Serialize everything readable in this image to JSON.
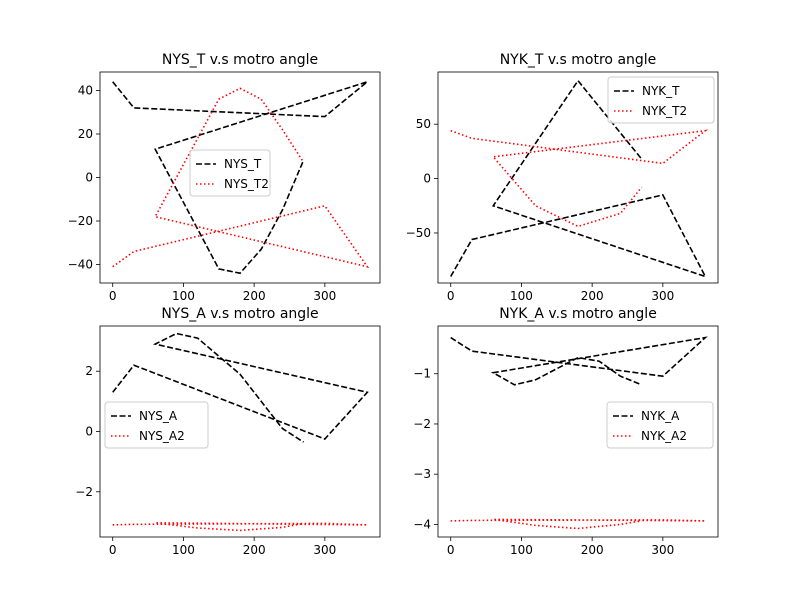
{
  "figure": {
    "background": "#ffffff"
  },
  "chart_data": [
    {
      "type": "line",
      "title": "NYS_T v.s motro angle",
      "xlabel": "",
      "ylabel": "",
      "xlim": [
        -18,
        378
      ],
      "ylim": [
        -48.5,
        48.5
      ],
      "xticks": [
        0,
        100,
        200,
        300
      ],
      "yticks": [
        -40,
        -20,
        0,
        20,
        40
      ],
      "grid": false,
      "legend": {
        "placement": "center",
        "entries": [
          "NYS_T",
          "NYS_T2"
        ]
      },
      "series": [
        {
          "name": "NYS_T",
          "color": "#000000",
          "dash": "dashed",
          "x": [
            0,
            30,
            300,
            360,
            60,
            150,
            180,
            210,
            240,
            270
          ],
          "y": [
            44,
            32,
            28,
            44,
            13,
            -42,
            -44,
            -33,
            -15,
            8
          ]
        },
        {
          "name": "NYS_T2",
          "color": "#ff0000",
          "dash": "dotted",
          "x": [
            0,
            30,
            300,
            360,
            60,
            150,
            180,
            210,
            240,
            270
          ],
          "y": [
            -41,
            -34,
            -13,
            -41,
            -18,
            36,
            41,
            36,
            22,
            7
          ]
        }
      ]
    },
    {
      "type": "line",
      "title": "NYK_T v.s motro angle",
      "xlabel": "",
      "ylabel": "",
      "xlim": [
        -18,
        378
      ],
      "ylim": [
        -96,
        98
      ],
      "xticks": [
        0,
        100,
        200,
        300
      ],
      "yticks": [
        -50,
        0,
        50
      ],
      "grid": false,
      "legend": {
        "placement": "top-right",
        "entries": [
          "NYK_T",
          "NYK_T2"
        ]
      },
      "series": [
        {
          "name": "NYK_T",
          "color": "#000000",
          "dash": "dashed",
          "x": [
            0,
            30,
            300,
            360,
            60,
            180,
            270
          ],
          "y": [
            -90,
            -56,
            -15,
            -90,
            -25,
            90,
            18
          ]
        },
        {
          "name": "NYK_T2",
          "color": "#ff0000",
          "dash": "dotted",
          "x": [
            0,
            30,
            300,
            360,
            60,
            120,
            180,
            240,
            270
          ],
          "y": [
            44,
            37,
            14,
            44,
            20,
            -25,
            -44,
            -32,
            -8
          ]
        }
      ]
    },
    {
      "type": "line",
      "title": "NYS_A v.s motro angle",
      "xlabel": "",
      "ylabel": "",
      "xlim": [
        -18,
        378
      ],
      "ylim": [
        -3.5,
        3.5
      ],
      "xticks": [
        0,
        100,
        200,
        300
      ],
      "yticks": [
        -2,
        0,
        2
      ],
      "grid": false,
      "legend": {
        "placement": "center-left",
        "entries": [
          "NYS_A",
          "NYS_A2"
        ]
      },
      "series": [
        {
          "name": "NYS_A",
          "color": "#000000",
          "dash": "dashed",
          "x": [
            0,
            30,
            300,
            360,
            60,
            90,
            120,
            180,
            240,
            270
          ],
          "y": [
            1.3,
            2.2,
            -0.25,
            1.3,
            2.9,
            3.25,
            3.1,
            1.9,
            0.1,
            -0.35
          ]
        },
        {
          "name": "NYS_A2",
          "color": "#ff0000",
          "dash": "dotted",
          "x": [
            0,
            30,
            300,
            360,
            60,
            120,
            180,
            240,
            270
          ],
          "y": [
            -3.1,
            -3.08,
            -3.05,
            -3.1,
            -3.03,
            -3.2,
            -3.28,
            -3.18,
            -3.05
          ]
        }
      ]
    },
    {
      "type": "line",
      "title": "NYK_A v.s motro angle",
      "xlabel": "",
      "ylabel": "",
      "xlim": [
        -18,
        378
      ],
      "ylim": [
        -4.25,
        -0.05
      ],
      "xticks": [
        0,
        100,
        200,
        300
      ],
      "yticks": [
        -4,
        -3,
        -2,
        -1
      ],
      "grid": false,
      "legend": {
        "placement": "center-right",
        "entries": [
          "NYK_A",
          "NYK_A2"
        ]
      },
      "series": [
        {
          "name": "NYK_A",
          "color": "#000000",
          "dash": "dashed",
          "x": [
            0,
            30,
            300,
            360,
            60,
            90,
            120,
            180,
            210,
            240,
            270
          ],
          "y": [
            -0.28,
            -0.55,
            -1.05,
            -0.28,
            -0.98,
            -1.22,
            -1.12,
            -0.68,
            -0.75,
            -1.05,
            -1.22
          ]
        },
        {
          "name": "NYK_A2",
          "color": "#ff0000",
          "dash": "dotted",
          "x": [
            0,
            30,
            300,
            360,
            60,
            120,
            180,
            240,
            270
          ],
          "y": [
            -3.93,
            -3.92,
            -3.91,
            -3.93,
            -3.9,
            -4.02,
            -4.08,
            -4.0,
            -3.93
          ]
        }
      ]
    }
  ]
}
